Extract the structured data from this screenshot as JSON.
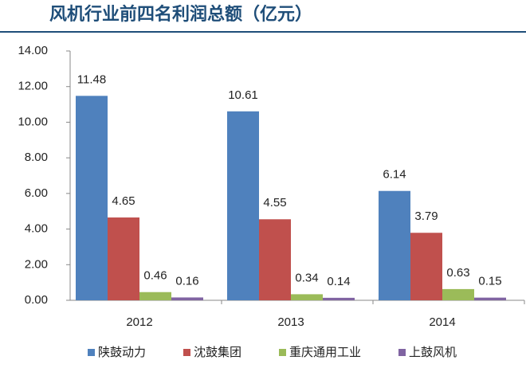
{
  "chart_data": {
    "type": "bar",
    "title": "风机行业前四名利润总额（亿元）",
    "categories": [
      "2012",
      "2013",
      "2014"
    ],
    "series": [
      {
        "name": "陕鼓动力",
        "color": "#4f81bd",
        "values": [
          11.48,
          10.61,
          6.14
        ]
      },
      {
        "name": "沈鼓集团",
        "color": "#c0504d",
        "values": [
          4.65,
          4.55,
          3.79
        ]
      },
      {
        "name": "重庆通用工业",
        "color": "#9bbb59",
        "values": [
          0.46,
          0.34,
          0.63
        ]
      },
      {
        "name": "上鼓风机",
        "color": "#8064a2",
        "values": [
          0.16,
          0.14,
          0.15
        ]
      }
    ],
    "ylim": [
      0,
      14
    ],
    "yticks": [
      {
        "value": 0,
        "label": "0.00"
      },
      {
        "value": 2,
        "label": "2.00"
      },
      {
        "value": 4,
        "label": "4.00"
      },
      {
        "value": 6,
        "label": "6.00"
      },
      {
        "value": 8,
        "label": "8.00"
      },
      {
        "value": 10,
        "label": "10.00"
      },
      {
        "value": 12,
        "label": "12.00"
      },
      {
        "value": 14,
        "label": "14.00"
      }
    ],
    "legend": "bottom"
  }
}
